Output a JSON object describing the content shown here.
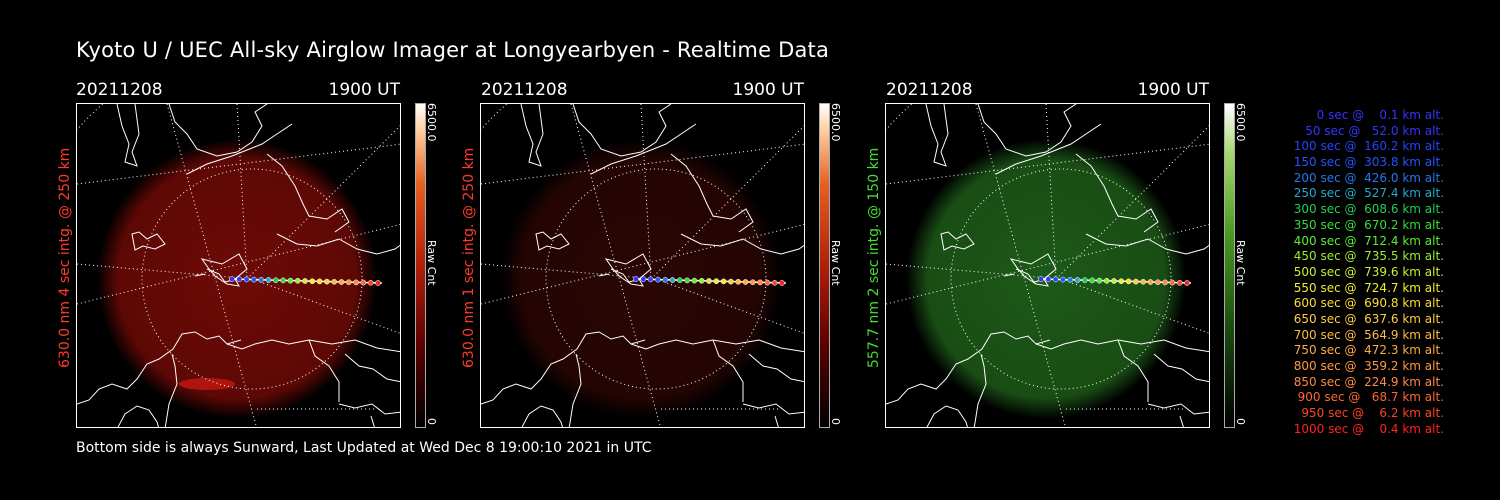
{
  "title": "Kyoto U / UEC All-sky Airglow Imager at Longyearbyen - Realtime Data",
  "footer": "Bottom side is always Sunward, Last Updated at Wed Dec  8 19:00:10 2021 in UTC",
  "panels": [
    {
      "date": "20211208",
      "time": "1900 UT",
      "ylabel": "630.0 nm 4 sec intg. @ 250 km",
      "ylabel_color": "#ff3a2a",
      "cbar_max": "6500.0",
      "cbar_min": "0",
      "cbar_unit": "Raw Cnt",
      "cmap": "red",
      "glow_color": "#6e0a06"
    },
    {
      "date": "20211208",
      "time": "1900 UT",
      "ylabel": "630.0 nm 1 sec intg. @ 250 km",
      "ylabel_color": "#ff3a2a",
      "cbar_max": "6500.0",
      "cbar_min": "0",
      "cbar_unit": "Raw Cnt",
      "cmap": "red",
      "glow_color": "#2a0604"
    },
    {
      "date": "20211208",
      "time": "1900 UT",
      "ylabel": "557.7 nm 2 sec intg. @ 150 km",
      "ylabel_color": "#44dd33",
      "cbar_max": "6500.0",
      "cbar_min": "0",
      "cbar_unit": "Raw Cnt",
      "cmap": "green",
      "glow_color": "#1d5a18"
    }
  ],
  "legend": [
    {
      "text": "   0 sec @    0.1 km alt.",
      "color": "#3333ff"
    },
    {
      "text": "  50 sec @   52.0 km alt.",
      "color": "#3333ff"
    },
    {
      "text": " 100 sec @  160.2 km alt.",
      "color": "#2244ff"
    },
    {
      "text": " 150 sec @  303.8 km alt.",
      "color": "#2255ff"
    },
    {
      "text": " 200 sec @  426.0 km alt.",
      "color": "#2277ee"
    },
    {
      "text": " 250 sec @  527.4 km alt.",
      "color": "#22aacc"
    },
    {
      "text": " 300 sec @  608.6 km alt.",
      "color": "#22cc55"
    },
    {
      "text": " 350 sec @  670.2 km alt.",
      "color": "#33dd33"
    },
    {
      "text": " 400 sec @  712.4 km alt.",
      "color": "#55ee33"
    },
    {
      "text": " 450 sec @  735.5 km alt.",
      "color": "#99ee33"
    },
    {
      "text": " 500 sec @  739.6 km alt.",
      "color": "#ccee33"
    },
    {
      "text": " 550 sec @  724.7 km alt.",
      "color": "#eeee33"
    },
    {
      "text": " 600 sec @  690.8 km alt.",
      "color": "#ffdd33"
    },
    {
      "text": " 650 sec @  637.6 km alt.",
      "color": "#ffcc44"
    },
    {
      "text": " 700 sec @  564.9 km alt.",
      "color": "#ffbb44"
    },
    {
      "text": " 750 sec @  472.3 km alt.",
      "color": "#ffaa44"
    },
    {
      "text": " 800 sec @  359.2 km alt.",
      "color": "#ff9944"
    },
    {
      "text": " 850 sec @  224.9 km alt.",
      "color": "#ff8844"
    },
    {
      "text": " 900 sec @   68.7 km alt.",
      "color": "#ff6633"
    },
    {
      "text": " 950 sec @    6.2 km alt.",
      "color": "#ff4422"
    },
    {
      "text": "1000 sec @    0.4 km alt.",
      "color": "#ff2222"
    }
  ]
}
